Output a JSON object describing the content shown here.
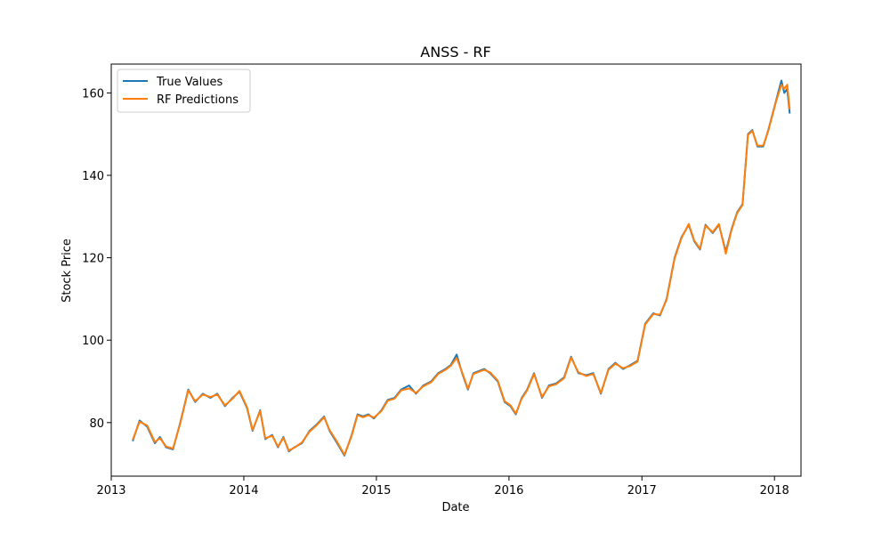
{
  "chart_data": {
    "type": "line",
    "title": "ANSS - RF",
    "xlabel": "Date",
    "ylabel": "Stock Price",
    "xlim": [
      "2013-01-01",
      "2018-03-15"
    ],
    "ylim": [
      67,
      167
    ],
    "x_ticks": [
      "2013",
      "2014",
      "2015",
      "2016",
      "2017",
      "2018"
    ],
    "y_ticks": [
      80,
      100,
      120,
      140,
      160
    ],
    "grid": false,
    "legend_position": "top-left",
    "x": [
      "2013-03-01",
      "2013-03-20",
      "2013-04-10",
      "2013-05-01",
      "2013-05-15",
      "2013-06-01",
      "2013-06-20",
      "2013-07-10",
      "2013-08-01",
      "2013-08-20",
      "2013-09-10",
      "2013-10-01",
      "2013-10-20",
      "2013-11-10",
      "2013-12-01",
      "2013-12-20",
      "2014-01-10",
      "2014-01-25",
      "2014-02-15",
      "2014-03-01",
      "2014-03-20",
      "2014-04-05",
      "2014-04-20",
      "2014-05-05",
      "2014-05-20",
      "2014-06-10",
      "2014-07-01",
      "2014-07-20",
      "2014-08-10",
      "2014-08-25",
      "2014-09-15",
      "2014-10-05",
      "2014-10-25",
      "2014-11-10",
      "2014-11-25",
      "2014-12-10",
      "2014-12-25",
      "2015-01-15",
      "2015-02-01",
      "2015-02-20",
      "2015-03-10",
      "2015-04-01",
      "2015-04-20",
      "2015-05-10",
      "2015-06-01",
      "2015-06-20",
      "2015-07-10",
      "2015-07-25",
      "2015-08-10",
      "2015-08-25",
      "2015-09-10",
      "2015-09-25",
      "2015-10-10",
      "2015-10-25",
      "2015-11-10",
      "2015-12-01",
      "2015-12-20",
      "2016-01-05",
      "2016-01-20",
      "2016-02-05",
      "2016-02-20",
      "2016-03-10",
      "2016-04-01",
      "2016-04-20",
      "2016-05-10",
      "2016-06-01",
      "2016-06-20",
      "2016-07-10",
      "2016-08-01",
      "2016-08-20",
      "2016-09-10",
      "2016-10-01",
      "2016-10-20",
      "2016-11-10",
      "2016-12-01",
      "2016-12-20",
      "2017-01-10",
      "2017-02-01",
      "2017-02-20",
      "2017-03-10",
      "2017-04-01",
      "2017-04-20",
      "2017-05-10",
      "2017-05-25",
      "2017-06-10",
      "2017-06-25",
      "2017-07-15",
      "2017-08-01",
      "2017-08-20",
      "2017-09-05",
      "2017-09-20",
      "2017-10-05",
      "2017-10-20",
      "2017-11-01",
      "2017-11-15",
      "2017-12-01",
      "2017-12-15",
      "2018-01-05",
      "2018-01-20",
      "2018-01-28",
      "2018-02-05",
      "2018-02-12"
    ],
    "series": [
      {
        "name": "True Values",
        "color": "#1f77b4",
        "values": [
          75.5,
          80.5,
          79.0,
          75.0,
          76.5,
          74.0,
          73.5,
          80.0,
          88.0,
          85.0,
          87.0,
          86.0,
          87.0,
          84.0,
          86.0,
          87.5,
          83.5,
          78.0,
          83.0,
          76.0,
          77.0,
          74.0,
          76.5,
          73.0,
          74.0,
          75.0,
          78.0,
          79.5,
          81.5,
          78.0,
          75.0,
          72.0,
          77.0,
          82.0,
          81.5,
          82.0,
          81.0,
          83.0,
          85.5,
          86.0,
          88.0,
          89.0,
          87.0,
          89.0,
          90.0,
          92.0,
          93.0,
          94.0,
          96.5,
          92.0,
          88.0,
          92.0,
          92.5,
          93.0,
          92.0,
          90.0,
          85.0,
          84.0,
          82.0,
          86.0,
          88.0,
          92.0,
          86.0,
          89.0,
          89.5,
          91.0,
          96.0,
          92.0,
          91.5,
          92.0,
          87.0,
          93.0,
          94.5,
          93.0,
          94.0,
          95.0,
          104.0,
          106.5,
          106.0,
          110.0,
          120.0,
          125.0,
          128.0,
          124.0,
          122.0,
          128.0,
          126.0,
          128.0,
          121.5,
          127.0,
          131.0,
          133.0,
          150.0,
          151.0,
          147.0,
          147.0,
          151.0,
          158.0,
          163.0,
          160.0,
          161.0,
          155.0
        ]
      },
      {
        "name": "RF Predictions",
        "color": "#ff7f0e",
        "values": [
          75.8,
          80.2,
          79.3,
          75.3,
          76.2,
          74.2,
          73.7,
          79.8,
          87.8,
          85.2,
          86.8,
          86.2,
          86.8,
          84.2,
          85.8,
          87.7,
          83.7,
          78.2,
          82.8,
          76.2,
          76.8,
          74.2,
          76.3,
          73.2,
          73.9,
          75.2,
          77.8,
          79.3,
          81.3,
          78.2,
          75.3,
          72.2,
          76.8,
          81.8,
          81.3,
          81.8,
          81.2,
          82.8,
          85.3,
          85.8,
          87.8,
          88.3,
          87.2,
          88.8,
          89.8,
          91.8,
          92.8,
          93.8,
          95.7,
          92.2,
          88.2,
          91.8,
          92.3,
          92.8,
          92.2,
          90.2,
          85.2,
          84.2,
          82.2,
          85.8,
          87.8,
          91.8,
          86.2,
          88.8,
          89.3,
          90.8,
          95.8,
          92.2,
          91.3,
          91.8,
          87.2,
          92.8,
          94.3,
          93.2,
          93.8,
          94.8,
          103.8,
          106.3,
          106.2,
          109.8,
          119.8,
          124.8,
          128.2,
          124.2,
          122.2,
          127.8,
          126.2,
          128.2,
          121.0,
          126.8,
          130.8,
          132.8,
          149.8,
          150.8,
          147.2,
          147.2,
          150.8,
          157.8,
          162.0,
          161.0,
          162.0,
          156.0
        ]
      }
    ]
  }
}
